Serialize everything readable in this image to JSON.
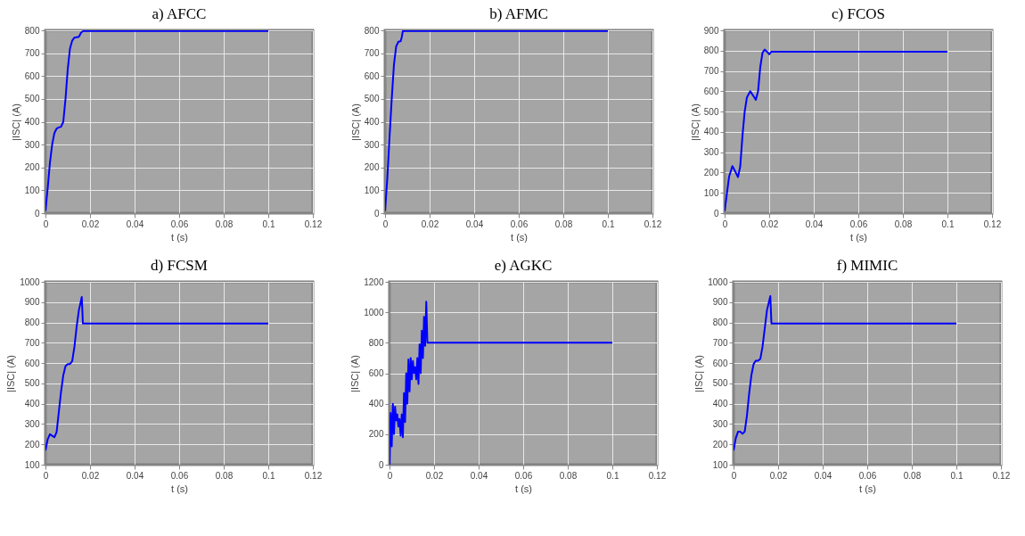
{
  "chart_data": [
    {
      "type": "line",
      "title": "a) AFCC",
      "xlabel": "t (s)",
      "ylabel": "|ISC| (A)",
      "xlim": [
        0,
        0.12
      ],
      "xticks": [
        0,
        0.02,
        0.04,
        0.06,
        0.08,
        0.1,
        0.12
      ],
      "ylim": [
        0,
        800
      ],
      "yticks": [
        0,
        100,
        200,
        300,
        400,
        500,
        600,
        700,
        800
      ],
      "grid": true,
      "line_style": "solid",
      "series": [
        {
          "color": "#0000ff",
          "x": [
            0,
            0.001,
            0.002,
            0.003,
            0.004,
            0.005,
            0.006,
            0.007,
            0.008,
            0.009,
            0.01,
            0.011,
            0.012,
            0.013,
            0.014,
            0.015,
            0.016,
            0.017,
            0.1
          ],
          "values": [
            10,
            110,
            220,
            300,
            350,
            370,
            375,
            378,
            400,
            500,
            630,
            720,
            755,
            768,
            770,
            772,
            790,
            797,
            797
          ]
        }
      ]
    },
    {
      "type": "line",
      "title": "b) AFMC",
      "xlabel": "t (s)",
      "ylabel": "|ISC| (A)",
      "xlim": [
        0,
        0.12
      ],
      "xticks": [
        0,
        0.02,
        0.04,
        0.06,
        0.08,
        0.1,
        0.12
      ],
      "ylim": [
        0,
        800
      ],
      "yticks": [
        0,
        100,
        200,
        300,
        400,
        500,
        600,
        700,
        800
      ],
      "grid": true,
      "line_style": "solid",
      "series": [
        {
          "color": "#0000ff",
          "x": [
            0,
            0.001,
            0.002,
            0.003,
            0.004,
            0.005,
            0.006,
            0.007,
            0.0075,
            0.008,
            0.1
          ],
          "values": [
            10,
            150,
            330,
            500,
            650,
            730,
            750,
            752,
            770,
            797,
            797
          ]
        }
      ]
    },
    {
      "type": "line",
      "title": "c) FCOS",
      "xlabel": "t (s)",
      "ylabel": "|ISC| (A)",
      "xlim": [
        0,
        0.12
      ],
      "xticks": [
        0,
        0.02,
        0.04,
        0.06,
        0.08,
        0.1,
        0.12
      ],
      "ylim": [
        0,
        900
      ],
      "yticks": [
        0,
        100,
        200,
        300,
        400,
        500,
        600,
        700,
        800,
        900
      ],
      "grid": true,
      "line_style": "solid",
      "series": [
        {
          "color": "#0000ff",
          "x": [
            0,
            0.002,
            0.0035,
            0.005,
            0.006,
            0.007,
            0.008,
            0.009,
            0.01,
            0.0115,
            0.013,
            0.014,
            0.015,
            0.016,
            0.017,
            0.018,
            0.019,
            0.02,
            0.021,
            0.1
          ],
          "values": [
            10,
            180,
            232,
            200,
            178,
            230,
            380,
            500,
            570,
            600,
            575,
            558,
            600,
            720,
            790,
            805,
            795,
            782,
            795,
            795
          ]
        }
      ]
    },
    {
      "type": "line",
      "title": "d) FCSM",
      "xlabel": "t (s)",
      "ylabel": "|ISC| (A)",
      "xlim": [
        0,
        0.12
      ],
      "xticks": [
        0,
        0.02,
        0.04,
        0.06,
        0.08,
        0.1,
        0.12
      ],
      "ylim": [
        100,
        1000
      ],
      "yticks": [
        100,
        200,
        300,
        400,
        500,
        600,
        700,
        800,
        900,
        1000
      ],
      "grid": true,
      "line_style": "solid",
      "series": [
        {
          "color": "#0000ff",
          "x": [
            0,
            0.001,
            0.002,
            0.003,
            0.004,
            0.005,
            0.006,
            0.007,
            0.008,
            0.009,
            0.01,
            0.011,
            0.012,
            0.013,
            0.014,
            0.015,
            0.0163,
            0.0168,
            0.1
          ],
          "values": [
            170,
            225,
            250,
            242,
            235,
            260,
            360,
            460,
            540,
            585,
            595,
            595,
            610,
            680,
            780,
            860,
            925,
            795,
            795
          ]
        }
      ]
    },
    {
      "type": "line",
      "title": "e) AGKC",
      "xlabel": "t (s)",
      "ylabel": "|ISC| (A)",
      "xlim": [
        0,
        0.12
      ],
      "xticks": [
        0,
        0.02,
        0.04,
        0.06,
        0.08,
        0.1,
        0.12
      ],
      "ylim": [
        0,
        1200
      ],
      "yticks": [
        0,
        200,
        400,
        600,
        800,
        1000,
        1200
      ],
      "grid": true,
      "line_style": "solid",
      "series": [
        {
          "color": "#0000ff",
          "x": [
            0,
            0.0005,
            0.001,
            0.0015,
            0.002,
            0.0025,
            0.003,
            0.0035,
            0.004,
            0.0045,
            0.005,
            0.0055,
            0.006,
            0.0065,
            0.007,
            0.0075,
            0.008,
            0.0085,
            0.009,
            0.0095,
            0.01,
            0.0105,
            0.011,
            0.0115,
            0.012,
            0.0125,
            0.013,
            0.0135,
            0.014,
            0.0145,
            0.015,
            0.0155,
            0.016,
            0.0165,
            0.017,
            0.1
          ],
          "values": [
            0,
            340,
            120,
            400,
            200,
            380,
            290,
            330,
            250,
            300,
            190,
            330,
            180,
            470,
            280,
            600,
            400,
            690,
            480,
            700,
            560,
            680,
            600,
            640,
            560,
            700,
            530,
            790,
            600,
            880,
            700,
            970,
            780,
            1070,
            800,
            800
          ]
        }
      ]
    },
    {
      "type": "line",
      "title": "f)  MIMIC",
      "xlabel": "t (s)",
      "ylabel": "|ISC| (A)",
      "xlim": [
        0,
        0.12
      ],
      "xticks": [
        0,
        0.02,
        0.04,
        0.06,
        0.08,
        0.1,
        0.12
      ],
      "ylim": [
        100,
        1000
      ],
      "yticks": [
        100,
        200,
        300,
        400,
        500,
        600,
        700,
        800,
        900,
        1000
      ],
      "grid": true,
      "line_style": "solid",
      "series": [
        {
          "color": "#0000ff",
          "x": [
            0,
            0.001,
            0.002,
            0.003,
            0.004,
            0.005,
            0.006,
            0.007,
            0.008,
            0.009,
            0.01,
            0.011,
            0.012,
            0.013,
            0.014,
            0.015,
            0.0165,
            0.017,
            0.1
          ],
          "values": [
            170,
            230,
            262,
            262,
            252,
            262,
            340,
            450,
            540,
            595,
            612,
            612,
            620,
            680,
            770,
            860,
            930,
            795,
            795
          ]
        }
      ]
    }
  ]
}
